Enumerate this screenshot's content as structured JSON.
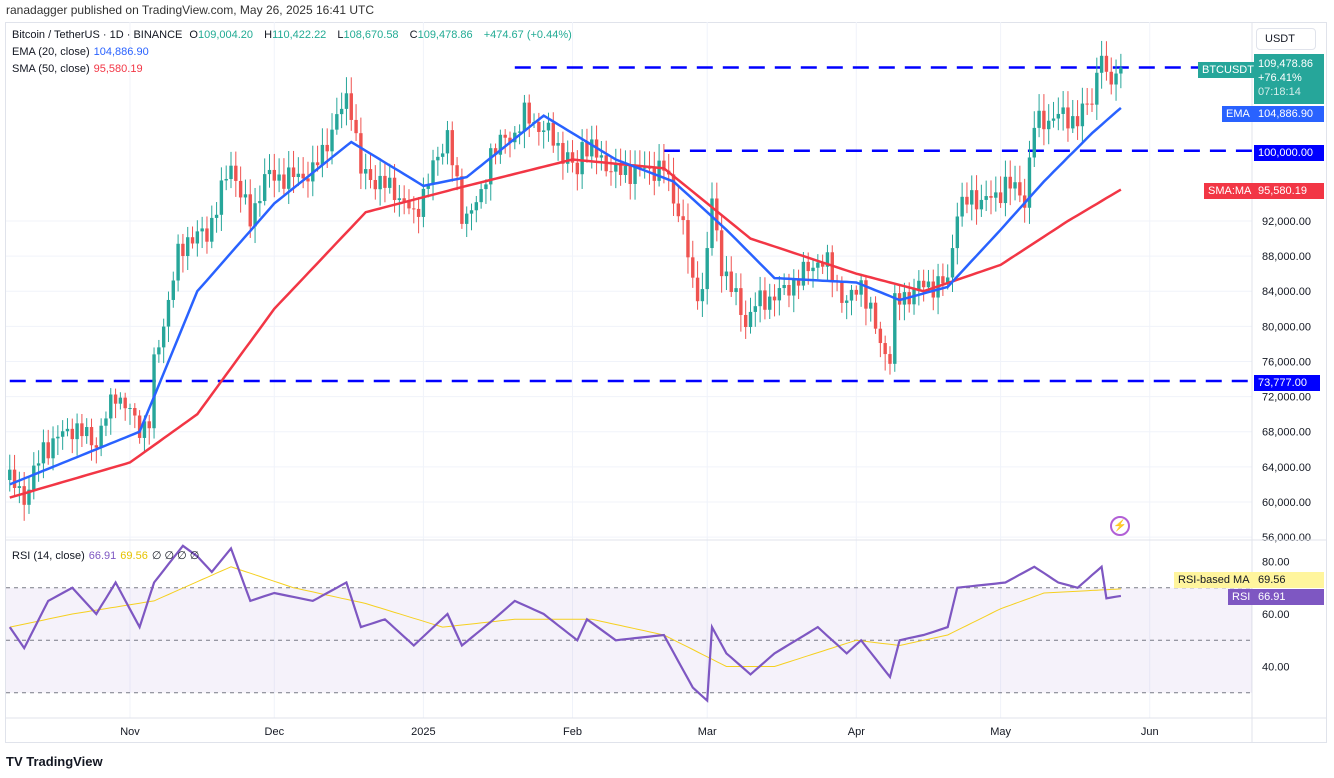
{
  "publisher": "ranadagger published on TradingView.com, May 26, 2025 16:41 UTC",
  "legend": {
    "symbol": "Bitcoin / TetherUS · 1D · BINANCE",
    "o_label": "O",
    "o": "109,004.20",
    "h_label": "H",
    "h": "110,422.22",
    "l_label": "L",
    "l": "108,670.58",
    "c_label": "C",
    "c": "109,478.86",
    "change": "+474.67 (+0.44%)",
    "ema_label": "EMA (20, close)",
    "ema": "104,886.90",
    "sma_label": "SMA (50, close)",
    "sma": "95,580.19",
    "rsi_label": "RSI (14, close)",
    "rsi": "66.91",
    "rsi_ma": "69.56",
    "rsi_extra": "∅ ∅ ∅ ∅"
  },
  "currency": "USDT",
  "tags": {
    "symbol": "BTCUSDT",
    "price": "109,478.86",
    "pct": "+76.41%",
    "countdown": "07:18:14",
    "ema": "EMA",
    "ema_val": "104,886.90",
    "level100": "100,000.00",
    "sma": "SMA:MA",
    "sma_val": "95,580.19",
    "level73": "73,777.00",
    "rsi_ma": "RSI-based MA",
    "rsi_ma_val": "69.56",
    "rsi": "RSI",
    "rsi_val": "66.91"
  },
  "colors": {
    "up": "#26a69a",
    "down": "#ef5350",
    "ema": "#2962ff",
    "sma": "#f23645",
    "level": "#0000ff",
    "rsi": "#7e57c2",
    "rsi_ma": "#f5d020"
  },
  "footer": "TradingView",
  "chart_data": [
    {
      "type": "candlestick",
      "title": "Bitcoin / TetherUS · 1D · BINANCE",
      "ylim": [
        56000,
        110000
      ],
      "y_ticks": [
        56000,
        60000,
        64000,
        68000,
        72000,
        76000,
        80000,
        84000,
        88000,
        92000
      ],
      "y_tick_labels": [
        "56,000.00",
        "60,000.00",
        "64,000.00",
        "68,000.00",
        "72,000.00",
        "76,000.00",
        "80,000.00",
        "84,000.00",
        "88,000.00",
        "92,000.00"
      ],
      "x_ticks": [
        "2024-11-01",
        "2024-12-01",
        "2025-01-01",
        "2025-02-01",
        "2025-03-01",
        "2025-04-01",
        "2025-05-01",
        "2025-06-01"
      ],
      "x_tick_labels": [
        "Nov",
        "Dec",
        "2025",
        "Feb",
        "Mar",
        "Apr",
        "May",
        "Jun"
      ],
      "horizontal_levels": [
        {
          "value": 109478.86,
          "from": "2025-01-20"
        },
        {
          "value": 100000,
          "from": "2025-02-20"
        },
        {
          "value": 73777,
          "from": "2024-10-07"
        }
      ],
      "close": [
        [
          "2024-10-07",
          62500
        ],
        [
          "2024-10-10",
          60500
        ],
        [
          "2024-10-14",
          66000
        ],
        [
          "2024-10-20",
          68500
        ],
        [
          "2024-10-25",
          66800
        ],
        [
          "2024-10-29",
          72500
        ],
        [
          "2024-11-03",
          68500
        ],
        [
          "2024-11-05",
          69000
        ],
        [
          "2024-11-06",
          75500
        ],
        [
          "2024-11-11",
          88000
        ],
        [
          "2024-11-13",
          90000
        ],
        [
          "2024-11-17",
          90500
        ],
        [
          "2024-11-22",
          98500
        ],
        [
          "2024-11-26",
          92000
        ],
        [
          "2024-11-29",
          97000
        ],
        [
          "2024-12-05",
          97000
        ],
        [
          "2024-12-09",
          97500
        ],
        [
          "2024-12-16",
          106000
        ],
        [
          "2024-12-17",
          105000
        ],
        [
          "2024-12-19",
          97500
        ],
        [
          "2024-12-26",
          95500
        ],
        [
          "2024-12-30",
          92500
        ],
        [
          "2025-01-06",
          102000
        ],
        [
          "2025-01-09",
          92500
        ],
        [
          "2025-01-13",
          94500
        ],
        [
          "2025-01-15",
          100000
        ],
        [
          "2025-01-20",
          102000
        ],
        [
          "2025-01-22",
          104000
        ],
        [
          "2025-01-27",
          102000
        ],
        [
          "2025-02-02",
          97500
        ],
        [
          "2025-02-03",
          101000
        ],
        [
          "2025-02-10",
          97500
        ],
        [
          "2025-02-20",
          98000
        ],
        [
          "2025-02-24",
          91500
        ],
        [
          "2025-02-26",
          84500
        ],
        [
          "2025-02-28",
          84000
        ],
        [
          "2025-03-02",
          94000
        ],
        [
          "2025-03-04",
          87000
        ],
        [
          "2025-03-09",
          80500
        ],
        [
          "2025-03-11",
          82500
        ],
        [
          "2025-03-17",
          84000
        ],
        [
          "2025-03-24",
          87500
        ],
        [
          "2025-03-26",
          87000
        ],
        [
          "2025-03-30",
          82500
        ],
        [
          "2025-04-02",
          85000
        ],
        [
          "2025-04-06",
          78000
        ],
        [
          "2025-04-08",
          76500
        ],
        [
          "2025-04-09",
          82500
        ],
        [
          "2025-04-14",
          84500
        ],
        [
          "2025-04-20",
          85000
        ],
        [
          "2025-04-22",
          93500
        ],
        [
          "2025-04-25",
          94500
        ],
        [
          "2025-04-30",
          94500
        ],
        [
          "2025-05-02",
          96500
        ],
        [
          "2025-05-06",
          94500
        ],
        [
          "2025-05-08",
          103000
        ],
        [
          "2025-05-13",
          104000
        ],
        [
          "2025-05-17",
          103500
        ],
        [
          "2025-05-20",
          106000
        ],
        [
          "2025-05-22",
          111500
        ],
        [
          "2025-05-23",
          107500
        ],
        [
          "2025-05-26",
          109478.86
        ]
      ],
      "series": [
        {
          "name": "EMA (20, close)",
          "values": [
            [
              "2024-10-07",
              62000
            ],
            [
              "2024-10-25",
              66000
            ],
            [
              "2024-11-03",
              68000
            ],
            [
              "2024-11-15",
              84000
            ],
            [
              "2024-12-01",
              94000
            ],
            [
              "2024-12-17",
              101000
            ],
            [
              "2025-01-01",
              96000
            ],
            [
              "2025-01-10",
              97000
            ],
            [
              "2025-01-26",
              104000
            ],
            [
              "2025-02-10",
              99000
            ],
            [
              "2025-02-22",
              96500
            ],
            [
              "2025-03-05",
              91000
            ],
            [
              "2025-03-15",
              85500
            ],
            [
              "2025-04-01",
              85000
            ],
            [
              "2025-04-10",
              83000
            ],
            [
              "2025-04-20",
              84500
            ],
            [
              "2025-05-01",
              91000
            ],
            [
              "2025-05-10",
              96500
            ],
            [
              "2025-05-20",
              102000
            ],
            [
              "2025-05-26",
              104886.9
            ]
          ]
        },
        {
          "name": "SMA (50, close)",
          "values": [
            [
              "2024-10-07",
              60500
            ],
            [
              "2024-11-01",
              64500
            ],
            [
              "2024-11-15",
              70000
            ],
            [
              "2024-12-01",
              82000
            ],
            [
              "2024-12-20",
              93000
            ],
            [
              "2025-01-10",
              96000
            ],
            [
              "2025-02-01",
              99000
            ],
            [
              "2025-02-20",
              98000
            ],
            [
              "2025-03-10",
              90000
            ],
            [
              "2025-04-01",
              86000
            ],
            [
              "2025-04-15",
              84000
            ],
            [
              "2025-05-01",
              87000
            ],
            [
              "2025-05-15",
              92000
            ],
            [
              "2025-05-26",
              95580.19
            ]
          ]
        }
      ]
    },
    {
      "type": "line",
      "title": "RSI (14, close)",
      "ylim": [
        20,
        90
      ],
      "y_ticks": [
        40,
        60,
        80
      ],
      "y_tick_labels": [
        "40.00",
        "60.00",
        "80.00"
      ],
      "bands": [
        30,
        50,
        70
      ],
      "series": [
        {
          "name": "RSI",
          "values": [
            [
              "2024-10-07",
              55
            ],
            [
              "2024-10-10",
              47
            ],
            [
              "2024-10-15",
              65
            ],
            [
              "2024-10-20",
              70
            ],
            [
              "2024-10-25",
              60
            ],
            [
              "2024-10-29",
              72
            ],
            [
              "2024-11-03",
              55
            ],
            [
              "2024-11-06",
              72
            ],
            [
              "2024-11-12",
              86
            ],
            [
              "2024-11-15",
              82
            ],
            [
              "2024-11-18",
              76
            ],
            [
              "2024-11-22",
              85
            ],
            [
              "2024-11-26",
              65
            ],
            [
              "2024-12-01",
              68
            ],
            [
              "2024-12-09",
              65
            ],
            [
              "2024-12-16",
              72
            ],
            [
              "2024-12-19",
              55
            ],
            [
              "2024-12-24",
              58
            ],
            [
              "2024-12-30",
              48
            ],
            [
              "2025-01-06",
              60
            ],
            [
              "2025-01-09",
              48
            ],
            [
              "2025-01-15",
              57
            ],
            [
              "2025-01-20",
              65
            ],
            [
              "2025-01-26",
              60
            ],
            [
              "2025-02-02",
              50
            ],
            [
              "2025-02-04",
              58
            ],
            [
              "2025-02-10",
              50
            ],
            [
              "2025-02-20",
              52
            ],
            [
              "2025-02-26",
              32
            ],
            [
              "2025-03-01",
              27
            ],
            [
              "2025-03-02",
              55
            ],
            [
              "2025-03-05",
              45
            ],
            [
              "2025-03-10",
              37
            ],
            [
              "2025-03-15",
              45
            ],
            [
              "2025-03-24",
              55
            ],
            [
              "2025-03-30",
              45
            ],
            [
              "2025-04-02",
              50
            ],
            [
              "2025-04-08",
              36
            ],
            [
              "2025-04-10",
              50
            ],
            [
              "2025-04-15",
              52
            ],
            [
              "2025-04-20",
              55
            ],
            [
              "2025-04-22",
              70
            ],
            [
              "2025-05-02",
              72
            ],
            [
              "2025-05-08",
              78
            ],
            [
              "2025-05-13",
              72
            ],
            [
              "2025-05-17",
              70
            ],
            [
              "2025-05-22",
              78
            ],
            [
              "2025-05-23",
              66
            ],
            [
              "2025-05-26",
              66.91
            ]
          ]
        },
        {
          "name": "RSI-based MA",
          "values": [
            [
              "2024-10-07",
              55
            ],
            [
              "2024-10-20",
              60
            ],
            [
              "2024-11-06",
              65
            ],
            [
              "2024-11-22",
              78
            ],
            [
              "2024-12-05",
              70
            ],
            [
              "2024-12-20",
              64
            ],
            [
              "2025-01-05",
              55
            ],
            [
              "2025-01-20",
              58
            ],
            [
              "2025-02-05",
              58
            ],
            [
              "2025-02-20",
              52
            ],
            [
              "2025-03-05",
              40
            ],
            [
              "2025-03-15",
              40
            ],
            [
              "2025-04-01",
              50
            ],
            [
              "2025-04-10",
              48
            ],
            [
              "2025-04-20",
              52
            ],
            [
              "2025-05-01",
              62
            ],
            [
              "2025-05-10",
              68
            ],
            [
              "2025-05-26",
              69.56
            ]
          ]
        }
      ]
    }
  ]
}
